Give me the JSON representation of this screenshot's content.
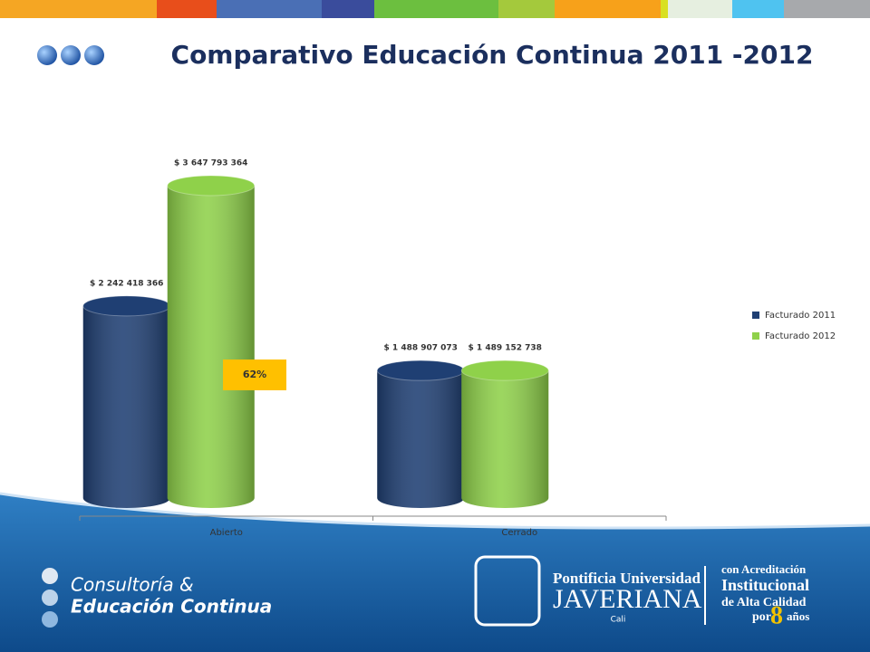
{
  "chart_data": {
    "type": "bar3d",
    "title": "Comparativo Educación Continua 2011 -2012",
    "categories": [
      "Abierto",
      "Cerrado"
    ],
    "series": [
      {
        "name": "Facturado 2011",
        "color": "#1f3f73",
        "values": [
          2242418366,
          1488907073
        ],
        "value_labels": [
          "$ 2 242 418 366",
          "$ 1 488 907 073"
        ]
      },
      {
        "name": "Facturado 2012",
        "color": "#8fd14a",
        "values": [
          3647793364,
          1489152738
        ],
        "value_labels": [
          "$ 3 647 793 364",
          "$ 1 489 152 738"
        ]
      }
    ],
    "annotation": "62%",
    "legend": "right"
  },
  "footer": {
    "unit_line1": "Consultoría &",
    "unit_line2": "Educación Continua",
    "university_line1": "Pontificia Universidad",
    "university_line2": "JAVERIANA",
    "university_city": "Cali",
    "accreditation_line1": "con Acreditación",
    "accreditation_line2": "Institucional",
    "accreditation_line3": "de Alta Calidad",
    "accreditation_line4": "por",
    "accreditation_years": "8",
    "accreditation_line5": "años"
  }
}
